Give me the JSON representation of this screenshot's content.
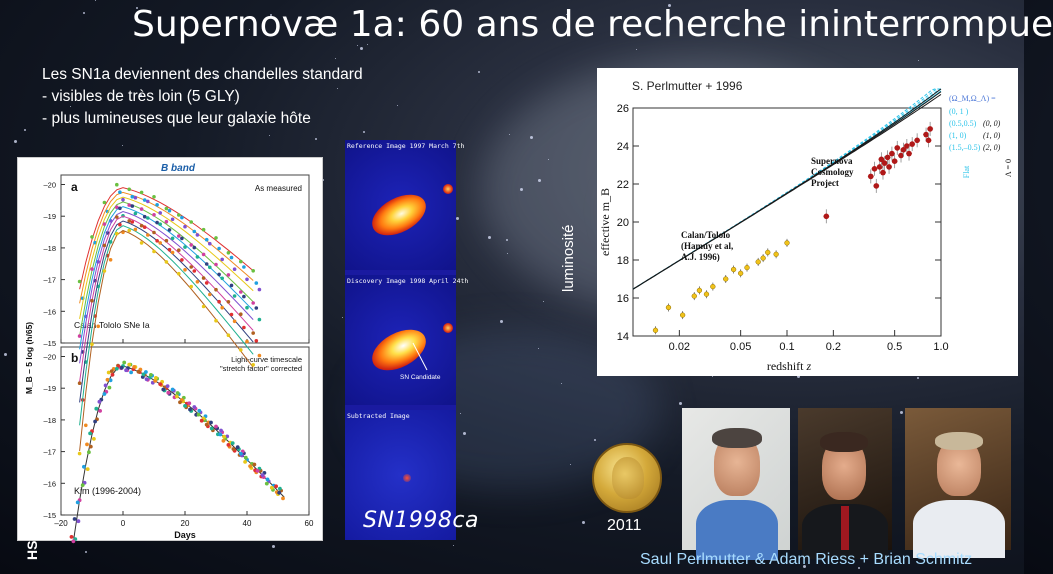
{
  "slide": {
    "title": "Supernovæ 1a: 60 ans de recherche ininterrompue",
    "bullets": [
      "Les SN1a deviennent des chandelles standard",
      "- visibles de très loin (5 GLY)",
      "- plus lumineuses que leur galaxie hôte"
    ],
    "footer_left": "HS"
  },
  "left_figure": {
    "header": "B band",
    "panel_a_label": "a",
    "panel_a_note": "As measured",
    "panel_a_caption": "Calan-Tololo SNe Ia",
    "panel_b_label": "b",
    "panel_b_note_line1": "Light-curve timescale",
    "panel_b_note_line2": "\"stretch factor\" corrected",
    "panel_b_caption": "Kim (1996-2004)",
    "ylabel": "M_B – 5 log (h/65)",
    "xlabel": "Days",
    "xticks": [
      "–20",
      "0",
      "20",
      "40",
      "60"
    ],
    "yticks_a": [
      "–20",
      "–19",
      "–18",
      "–17",
      "–16",
      "–15"
    ],
    "yticks_b": [
      "–20",
      "–19",
      "–18",
      "–17",
      "–16",
      "–15"
    ]
  },
  "supernova_images": {
    "labels": [
      "Reference Image  1997 March 7th",
      "Discovery Image  1998 April 24th",
      "Subtracted Image"
    ],
    "candidate_label": "SN Candidate",
    "caption": "SN1998ca"
  },
  "hubble_diagram": {
    "credit": "S. Perlmutter + 1996",
    "ylabel": "effective m_B",
    "xlabel": "redshift",
    "xlabel_var": "z",
    "side_label": "luminosité",
    "annotation_scp": [
      "Supernova",
      "Cosmology",
      "Project"
    ],
    "annotation_ct": [
      "Calan/Tololo",
      "(Hamuy et al,",
      "A.J. 1996)"
    ],
    "legend_header": "(Ω_M,Ω_Λ) =",
    "legend_flat": [
      "(0,  1 )",
      "(0.5,0.5)",
      "(1,  0)",
      "(1.5,–0.5)"
    ],
    "legend_lambda0": [
      "(0, 0)",
      "(1, 0)",
      "(2, 0)"
    ],
    "flat_label": "Flat",
    "lambda_label": "Λ = 0",
    "chart_data": {
      "type": "scatter",
      "xscale": "log",
      "xlim": [
        0.01,
        1.0
      ],
      "ylim": [
        14,
        26
      ],
      "xticks": [
        "0.02",
        "0.05",
        "0.1",
        "0.2",
        "0.5",
        "1.0"
      ],
      "yticks": [
        "14",
        "16",
        "18",
        "20",
        "22",
        "24",
        "26"
      ],
      "low_z": {
        "x": [
          0.014,
          0.017,
          0.021,
          0.025,
          0.027,
          0.03,
          0.033,
          0.04,
          0.045,
          0.05,
          0.055,
          0.065,
          0.07,
          0.075,
          0.085,
          0.1
        ],
        "y": [
          14.3,
          15.5,
          15.1,
          16.1,
          16.4,
          16.2,
          16.6,
          17.0,
          17.5,
          17.3,
          17.6,
          17.9,
          18.1,
          18.4,
          18.3,
          18.9
        ]
      },
      "high_z": {
        "x": [
          0.18,
          0.35,
          0.37,
          0.38,
          0.4,
          0.41,
          0.42,
          0.43,
          0.45,
          0.46,
          0.48,
          0.5,
          0.52,
          0.55,
          0.57,
          0.6,
          0.62,
          0.65,
          0.7,
          0.8,
          0.83,
          0.85
        ],
        "y": [
          20.3,
          22.4,
          22.8,
          21.9,
          22.9,
          23.3,
          22.6,
          23.1,
          23.4,
          22.9,
          23.6,
          23.2,
          23.9,
          23.5,
          23.8,
          24.0,
          23.6,
          24.1,
          24.3,
          24.6,
          24.3,
          24.9
        ]
      },
      "model_offset": 26.46
    }
  },
  "laureates": {
    "year": "2011",
    "names": "Saul Perlmutter & Adam Riess   + Brian  Schmitz"
  },
  "colors": {
    "flat_lines": "#2ec4ea",
    "lambda0_lines": "#1a1a1a",
    "high_z_points": "#b01818",
    "low_z_points": "#f0c21a",
    "names_text": "#a8dcff"
  }
}
